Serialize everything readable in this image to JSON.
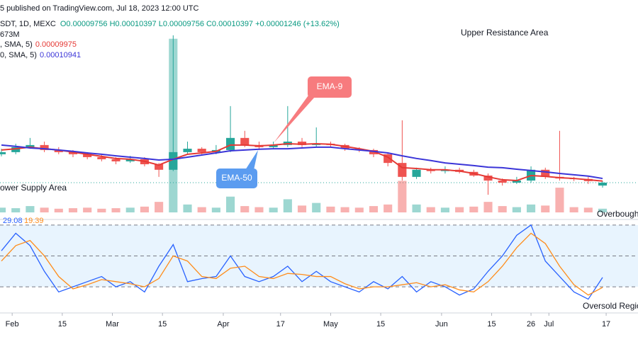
{
  "chart_data": {
    "type": "candlestick",
    "title": "5 published on TradingView.com, Jul 18, 2023 12:00 UTC",
    "symbol": "SDT, 1D, MEXC",
    "ohlc_text": "O0.00009756 H0.00010397 L0.00009756 C0.00010397 +0.00001246 (+13.62%)",
    "volume_text": "673M",
    "ma_lines": [
      {
        "label": ", SMA, 5)",
        "value_text": "0.00009975",
        "color": "#e53935"
      },
      {
        "label": "0, SMA, 5)",
        "value_text": "0.00010941",
        "color": "#3b35d8"
      }
    ],
    "annotations": [
      "Upper Resistance Area",
      "ower Supply Area",
      "Overbought",
      "Oversold Region"
    ],
    "x": [
      29,
      33,
      37,
      41,
      45,
      49,
      53,
      57,
      61,
      65,
      69,
      73,
      77,
      81,
      85,
      89,
      93,
      97,
      101,
      105,
      109,
      113,
      117,
      121,
      125,
      129,
      133,
      137,
      141,
      145,
      149,
      153,
      157,
      161,
      165,
      169,
      173,
      177,
      181,
      185,
      189,
      193,
      197
    ],
    "open": [
      0.0001148,
      0.0001156,
      0.0001175,
      0.0001183,
      0.0001164,
      0.0001156,
      0.0001148,
      0.0001137,
      0.0001129,
      0.0001121,
      0.0001129,
      0.000111,
      0.0001089,
      0.0001156,
      0.0001169,
      0.0001156,
      0.0001164,
      0.000121,
      0.0001183,
      0.0001175,
      0.0001183,
      0.0001196,
      0.0001183,
      0.0001188,
      0.0001183,
      0.0001169,
      0.0001164,
      0.0001148,
      0.0001115,
      0.0001062,
      0.0001089,
      0.0001084,
      0.0001089,
      0.0001081,
      0.0001067,
      0.0001048,
      0.000104,
      0.0001048,
      0.0001089,
      0.0001062,
      0.0001056,
      0.0001054,
      0.0001029
    ],
    "high": [
      0.0001169,
      0.0001188,
      0.000121,
      0.0001196,
      0.0001175,
      0.0001164,
      0.0001156,
      0.0001148,
      0.0001137,
      0.0001142,
      0.0001137,
      0.0001115,
      0.00016,
      0.0001196,
      0.0001175,
      0.0001183,
      0.0001331,
      0.0001237,
      0.0001196,
      0.0001196,
      0.0001331,
      0.000121,
      0.000125,
      0.0001196,
      0.0001188,
      0.0001175,
      0.0001169,
      0.0001156,
      0.0001277,
      0.0001097,
      0.0001097,
      0.0001102,
      0.0001097,
      0.0001089,
      0.0001075,
      0.0001056,
      0.0001062,
      0.0001102,
      0.0001097,
      0.0001237,
      0.0001062,
      0.0001062,
      0.0001046
    ],
    "low": [
      0.000114,
      0.0001148,
      0.0001169,
      0.0001156,
      0.0001148,
      0.0001137,
      0.0001129,
      0.0001121,
      0.000111,
      0.0001115,
      0.0001102,
      0.0001062,
      0.0001084,
      0.0001148,
      0.0001148,
      0.0001148,
      0.0001156,
      0.0001175,
      0.0001164,
      0.0001169,
      0.0001175,
      0.0001175,
      0.0001175,
      0.0001175,
      0.0001161,
      0.0001156,
      0.0001137,
      0.0001102,
      0.0001048,
      0.0001054,
      0.0001075,
      0.0001075,
      0.0001075,
      0.0001062,
      9.94e-05,
      0.0001029,
      0.0001035,
      0.000104,
      0.0001054,
      0.0001048,
      0.0001046,
      0.0001035,
      0.0001021
    ],
    "close": [
      0.0001156,
      0.0001175,
      0.0001183,
      0.0001164,
      0.0001156,
      0.0001148,
      0.0001137,
      0.0001129,
      0.0001121,
      0.0001129,
      0.000111,
      0.0001089,
      0.0001156,
      0.0001169,
      0.0001156,
      0.0001164,
      0.000121,
      0.0001183,
      0.0001175,
      0.0001183,
      0.0001196,
      0.0001183,
      0.0001188,
      0.0001183,
      0.0001169,
      0.0001164,
      0.0001148,
      0.0001115,
      0.0001062,
      0.0001089,
      0.0001084,
      0.0001089,
      0.0001081,
      0.0001067,
      0.0001048,
      0.000104,
      0.0001048,
      0.0001089,
      0.0001062,
      0.0001056,
      0.0001054,
      0.0001046,
      0.000104
    ],
    "up_color": "#26a69a",
    "down_color": "#ef5350",
    "series": [
      {
        "name": "EMA-9",
        "color": "#e53935",
        "values": [
          0.0001164,
          0.0001169,
          0.0001175,
          0.0001169,
          0.0001164,
          0.0001156,
          0.0001148,
          0.000114,
          0.0001132,
          0.0001129,
          0.0001121,
          0.0001107,
          0.0001129,
          0.0001148,
          0.0001153,
          0.0001159,
          0.0001183,
          0.0001183,
          0.000118,
          0.0001183,
          0.0001188,
          0.0001186,
          0.0001188,
          0.0001186,
          0.0001178,
          0.0001169,
          0.0001159,
          0.0001137,
          0.0001097,
          0.0001094,
          0.0001089,
          0.0001089,
          0.0001084,
          0.0001075,
          0.0001062,
          0.0001051,
          0.0001048,
          0.0001067,
          0.0001064,
          0.0001059,
          0.0001056,
          0.0001051,
          0.0001046
        ]
      },
      {
        "name": "EMA-50",
        "color": "#3b35d8",
        "values": [
          0.0001183,
          0.0001178,
          0.0001172,
          0.0001169,
          0.0001164,
          0.0001159,
          0.0001153,
          0.0001148,
          0.0001142,
          0.0001137,
          0.0001132,
          0.0001126,
          0.0001129,
          0.0001137,
          0.0001145,
          0.0001153,
          0.0001161,
          0.0001164,
          0.0001167,
          0.0001169,
          0.0001169,
          0.0001172,
          0.0001175,
          0.0001175,
          0.0001169,
          0.0001164,
          0.0001159,
          0.0001153,
          0.0001142,
          0.0001132,
          0.0001124,
          0.0001115,
          0.000111,
          0.0001105,
          0.0001099,
          0.0001097,
          0.0001091,
          0.0001086,
          0.0001081,
          0.0001075,
          0.000107,
          0.0001065,
          0.0001056
        ]
      }
    ],
    "volume": {
      "ylim": [
        0,
        37000
      ],
      "values": [
        900,
        800,
        1200,
        900,
        700,
        800,
        900,
        700,
        800,
        900,
        1100,
        2000,
        33000,
        1500,
        1000,
        900,
        3000,
        1200,
        1000,
        900,
        2500,
        1300,
        1800,
        1100,
        1000,
        900,
        1200,
        1500,
        6000,
        1500,
        1000,
        900,
        1000,
        1100,
        2000,
        1200,
        1000,
        1500,
        1300,
        4700,
        1000,
        900,
        700
      ]
    },
    "oscillator": {
      "ylim": [
        -4,
        84
      ],
      "levels": [
        80,
        50,
        20
      ],
      "series": [
        {
          "color": "#2962ff",
          "values": [
            55,
            72,
            60,
            35,
            15,
            20,
            25,
            30,
            20,
            25,
            15,
            40,
            61,
            25,
            28,
            30,
            50,
            30,
            25,
            30,
            40,
            25,
            35,
            25,
            20,
            15,
            25,
            18,
            30,
            15,
            25,
            20,
            12,
            18,
            35,
            50,
            70,
            80,
            45,
            30,
            15,
            8,
            29.08
          ]
        },
        {
          "color": "#ff8c1a",
          "values": [
            45,
            60,
            65,
            50,
            30,
            18,
            22,
            27,
            25,
            23,
            20,
            28,
            50,
            45,
            30,
            28,
            38,
            40,
            30,
            28,
            33,
            32,
            30,
            30,
            23,
            18,
            20,
            20,
            22,
            24,
            20,
            22,
            17,
            15,
            25,
            40,
            58,
            72,
            62,
            40,
            22,
            12,
            19.39
          ]
        }
      ]
    },
    "xlim": [
      28.6,
      206.9
    ],
    "ylim": [
      9.27e-05,
      0.0001667
    ],
    "xticks": [
      {
        "value": 32,
        "label": "Feb"
      },
      {
        "value": 46,
        "label": "15"
      },
      {
        "value": 60,
        "label": "Mar"
      },
      {
        "value": 74,
        "label": "15"
      },
      {
        "value": 91,
        "label": "Apr"
      },
      {
        "value": 107,
        "label": "17"
      },
      {
        "value": 121,
        "label": "May"
      },
      {
        "value": 135,
        "label": "15"
      },
      {
        "value": 152,
        "label": "Jun"
      },
      {
        "value": 166,
        "label": "15"
      },
      {
        "value": 177,
        "label": "26"
      },
      {
        "value": 182,
        "label": "Jul"
      },
      {
        "value": 198,
        "label": "17"
      }
    ]
  }
}
